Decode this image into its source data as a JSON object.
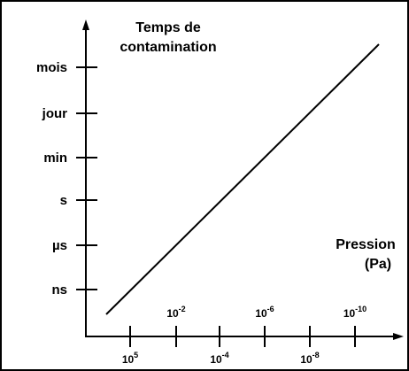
{
  "y_axis": {
    "title": [
      "Temps de",
      "contamination"
    ],
    "ticks": [
      "mois",
      "jour",
      "min",
      "s",
      "µs",
      "ns"
    ]
  },
  "x_axis": {
    "title": [
      "Pression",
      "(Pa)"
    ],
    "ticks": [
      {
        "base": "10",
        "exponent": "5"
      },
      {
        "base": "10",
        "exponent": "-2"
      },
      {
        "base": "10",
        "exponent": "-4"
      },
      {
        "base": "10",
        "exponent": "-6"
      },
      {
        "base": "10",
        "exponent": "-8"
      },
      {
        "base": "10",
        "exponent": "-10"
      }
    ]
  }
}
